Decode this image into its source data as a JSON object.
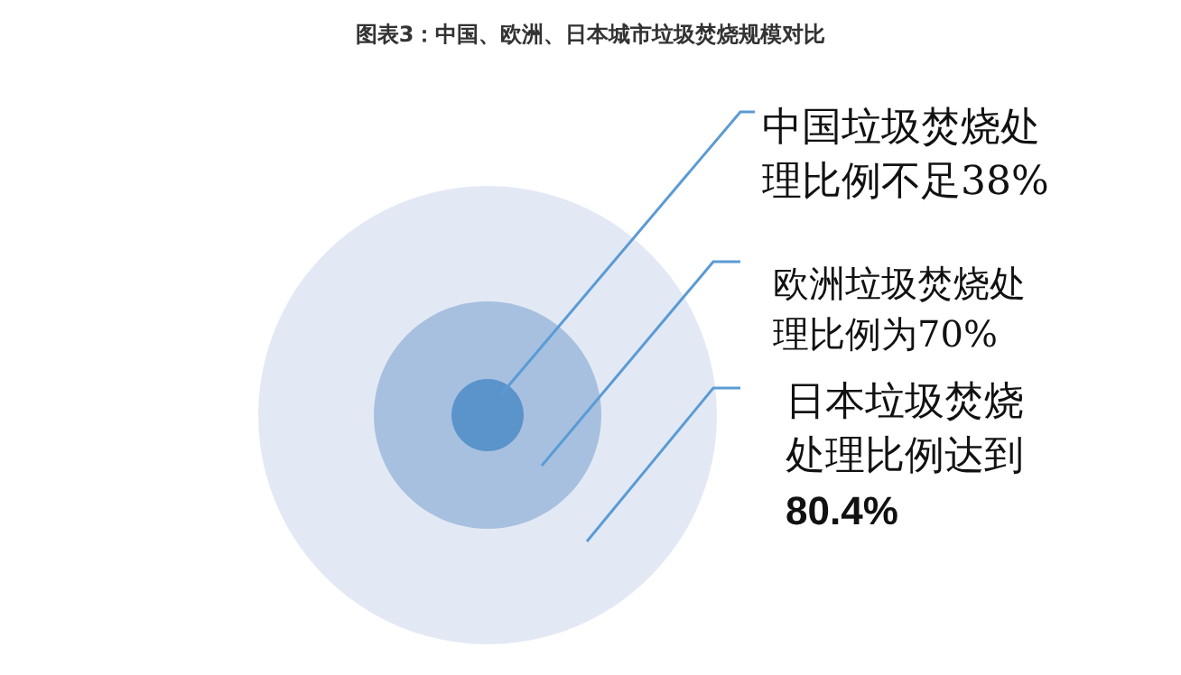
{
  "chart_data": {
    "type": "other",
    "title": "图表3：中国、欧洲、日本城市垃圾焚烧规模对比",
    "categories": [
      "中国垃圾焚烧处理比例不足",
      "欧洲垃圾焚烧处理比例为",
      "日本垃圾焚烧处理比例达到"
    ],
    "values": [
      38,
      70,
      80.4
    ],
    "value_labels": [
      "38%",
      "70%",
      "80.4%"
    ],
    "colors": [
      "#5b93cb",
      "#a7c0e0",
      "#e3e9f4"
    ]
  }
}
